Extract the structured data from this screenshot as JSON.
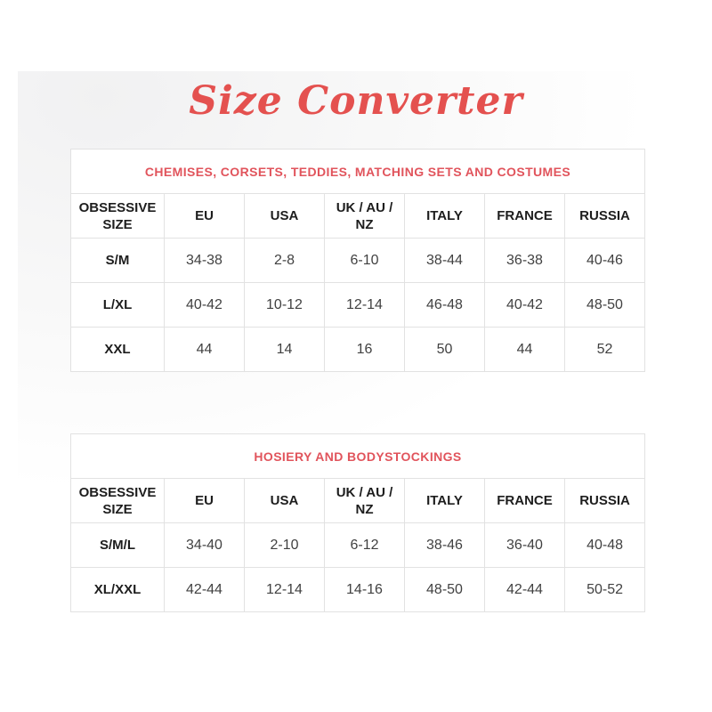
{
  "page": {
    "title": "Size Converter",
    "colors": {
      "title_accent": "#e4514f",
      "caption_accent": "#e1545c",
      "table_border": "#e2e2e2",
      "header_text": "#1d1d1d",
      "cell_text": "#414141",
      "page_tint": "#f1f1f2"
    }
  },
  "tables": [
    {
      "caption": "CHEMISES, CORSETS, TEDDIES, MATCHING SETS AND COSTUMES",
      "columns": [
        "OBSESSIVE SIZE",
        "EU",
        "USA",
        "UK / AU / NZ",
        "ITALY",
        "FRANCE",
        "RUSSIA"
      ],
      "rows": [
        {
          "label": "S/M",
          "values": [
            "34-38",
            "2-8",
            "6-10",
            "38-44",
            "36-38",
            "40-46"
          ]
        },
        {
          "label": "L/XL",
          "values": [
            "40-42",
            "10-12",
            "12-14",
            "46-48",
            "40-42",
            "48-50"
          ]
        },
        {
          "label": "XXL",
          "values": [
            "44",
            "14",
            "16",
            "50",
            "44",
            "52"
          ]
        }
      ]
    },
    {
      "caption": "HOSIERY AND BODYSTOCKINGS",
      "columns": [
        "OBSESSIVE SIZE",
        "EU",
        "USA",
        "UK / AU / NZ",
        "ITALY",
        "FRANCE",
        "RUSSIA"
      ],
      "rows": [
        {
          "label": "S/M/L",
          "values": [
            "34-40",
            "2-10",
            "6-12",
            "38-46",
            "36-40",
            "40-48"
          ]
        },
        {
          "label": "XL/XXL",
          "values": [
            "42-44",
            "12-14",
            "14-16",
            "48-50",
            "42-44",
            "50-52"
          ]
        }
      ]
    }
  ]
}
